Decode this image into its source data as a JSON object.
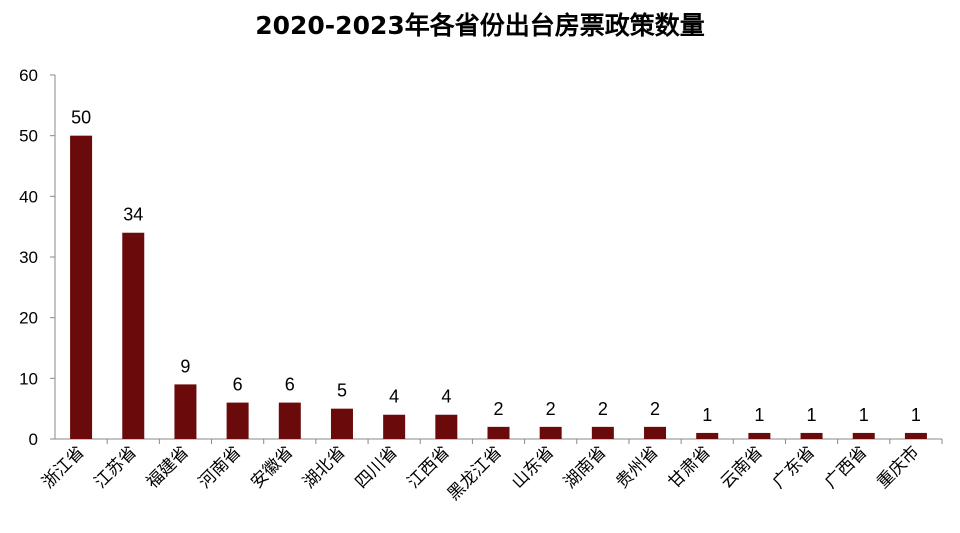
{
  "chart_data": {
    "type": "bar",
    "title": "2020-2023年各省份出台房票政策数量",
    "xlabel": "",
    "ylabel": "",
    "ylim": [
      0,
      60
    ],
    "yticks": [
      0,
      10,
      20,
      30,
      40,
      50,
      60
    ],
    "grid": false,
    "legend": "none",
    "bar_color": "#6b0a0a",
    "categories": [
      "浙江省",
      "江苏省",
      "福建省",
      "河南省",
      "安徽省",
      "湖北省",
      "四川省",
      "江西省",
      "黑龙江省",
      "山东省",
      "湖南省",
      "贵州省",
      "甘肃省",
      "云南省",
      "广东省",
      "广西省",
      "重庆市"
    ],
    "values": [
      50,
      34,
      9,
      6,
      6,
      5,
      4,
      4,
      2,
      2,
      2,
      2,
      1,
      1,
      1,
      1,
      1
    ]
  }
}
